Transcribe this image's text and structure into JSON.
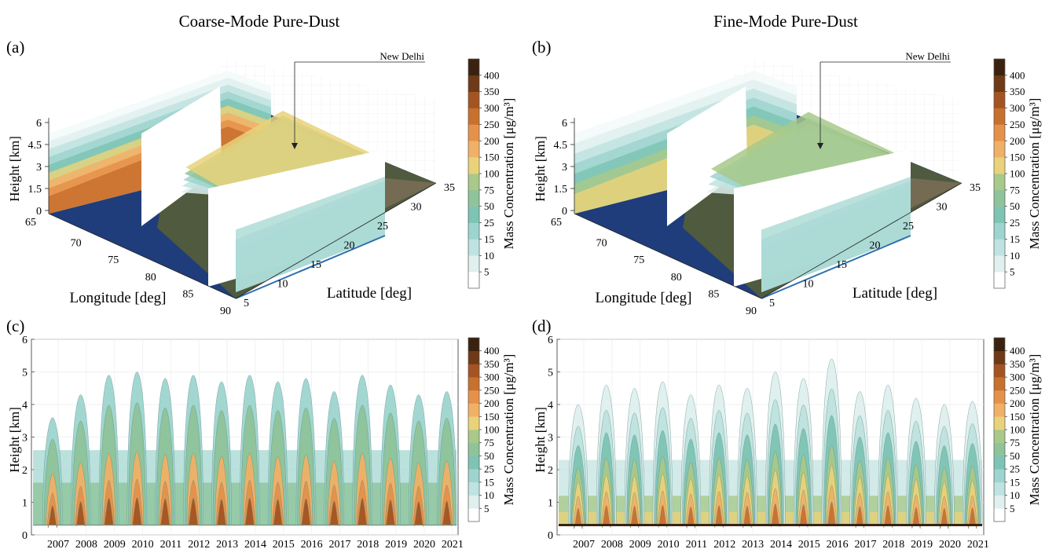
{
  "figure": {
    "panel_titles": [
      "Coarse-Mode Pure-Dust",
      "Fine-Mode Pure-Dust"
    ],
    "panel_letters": [
      "(a)",
      "(b)",
      "(c)",
      "(d)"
    ],
    "annotation": "New Delhi"
  },
  "colorbar": {
    "label": "Mass Concentration [μg/m³]",
    "levels": [
      5,
      10,
      15,
      25,
      50,
      75,
      100,
      150,
      200,
      250,
      300,
      350,
      400
    ],
    "colors": [
      "#ffffff",
      "#dff0ee",
      "#bfe3e0",
      "#9ed4cf",
      "#7ec4b4",
      "#8fc49a",
      "#a8c98a",
      "#e9d27a",
      "#f1b067",
      "#e5914a",
      "#c8702e",
      "#a45421",
      "#6e3a17",
      "#3b2210"
    ]
  },
  "chart_data": [
    {
      "type": "3d-curtain",
      "panel": "(a)",
      "title": "Coarse-Mode Pure-Dust",
      "xlabel": "Longitude [deg]",
      "ylabel": "Latitude [deg]",
      "zlabel": "Height [km]",
      "x_ticks": [
        "65",
        "70",
        "75",
        "80",
        "85",
        "90"
      ],
      "y_ticks": [
        "5",
        "10",
        "15",
        "20",
        "25",
        "30",
        "35"
      ],
      "z_ticks": [
        "0",
        "1.5",
        "3",
        "4.5",
        "6"
      ]
    },
    {
      "type": "3d-curtain",
      "panel": "(b)",
      "title": "Fine-Mode Pure-Dust",
      "xlabel": "Longitude [deg]",
      "ylabel": "Latitude [deg]",
      "zlabel": "Height [km]",
      "x_ticks": [
        "65",
        "70",
        "75",
        "80",
        "85",
        "90"
      ],
      "y_ticks": [
        "5",
        "10",
        "15",
        "20",
        "25",
        "30",
        "35"
      ],
      "z_ticks": [
        "0",
        "1.5",
        "3",
        "4.5",
        "6"
      ]
    },
    {
      "type": "heatmap",
      "panel": "(c)",
      "ylabel": "Height [km]",
      "ylim": [
        0,
        6
      ],
      "y_ticks": [
        0,
        1,
        2,
        3,
        4,
        5,
        6
      ],
      "x_ticks": [
        "2007",
        "2008",
        "2009",
        "2010",
        "2011",
        "2012",
        "2013",
        "2014",
        "2015",
        "2016",
        "2017",
        "2018",
        "2019",
        "2020",
        "2021"
      ],
      "peak_heights_km": [
        3.6,
        4.3,
        4.9,
        5.0,
        4.8,
        4.9,
        4.7,
        4.9,
        4.7,
        4.8,
        4.4,
        4.9,
        4.6,
        4.3,
        4.4
      ]
    },
    {
      "type": "heatmap",
      "panel": "(d)",
      "ylabel": "Height [km]",
      "ylim": [
        0,
        6
      ],
      "y_ticks": [
        0,
        1,
        2,
        3,
        4,
        5,
        6
      ],
      "x_ticks": [
        "2007",
        "2008",
        "2009",
        "2010",
        "2011",
        "2012",
        "2013",
        "2014",
        "2015",
        "2016",
        "2017",
        "2018",
        "2019",
        "2020",
        "2021"
      ],
      "peak_heights_km": [
        4.0,
        4.6,
        4.5,
        4.7,
        4.3,
        4.6,
        4.5,
        5.0,
        4.8,
        5.4,
        4.4,
        4.6,
        4.2,
        4.0,
        4.1
      ]
    }
  ]
}
